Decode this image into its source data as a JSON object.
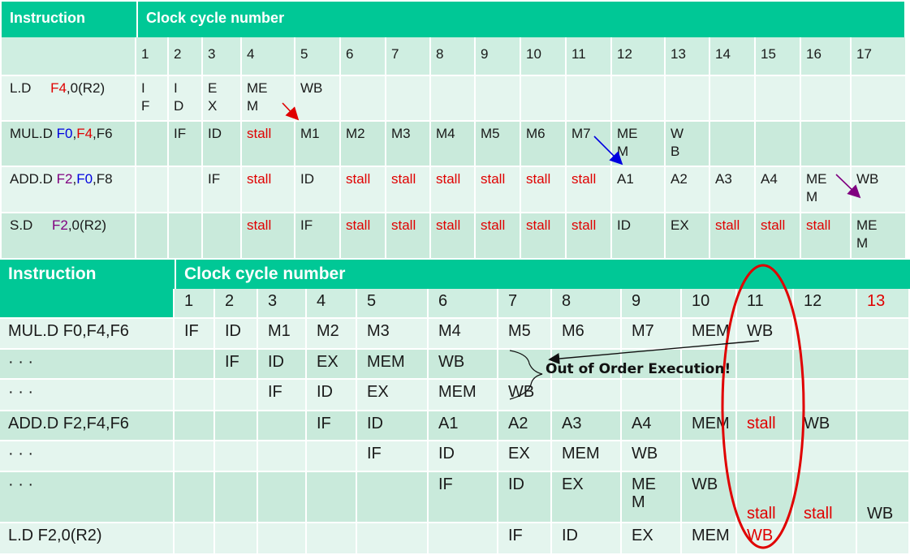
{
  "top_table": {
    "instruction_header": "Instruction",
    "clock_header": "Clock cycle number",
    "cycles": [
      "1",
      "2",
      "3",
      "4",
      "5",
      "6",
      "7",
      "8",
      "9",
      "10",
      "11",
      "12",
      "13",
      "14",
      "15",
      "16",
      "17"
    ],
    "rows": [
      {
        "parts": [
          {
            "t": "L.D     ",
            "c": ""
          },
          {
            "t": "F4",
            "c": "red"
          },
          {
            "t": ",0(R2)",
            "c": ""
          }
        ],
        "cells": [
          "I\nF",
          "I\nD",
          "E\nX",
          "ME\nM",
          "WB",
          "",
          "",
          "",
          "",
          "",
          "",
          "",
          "",
          "",
          "",
          "",
          ""
        ]
      },
      {
        "parts": [
          {
            "t": "MUL.D ",
            "c": ""
          },
          {
            "t": "F0",
            "c": "blue"
          },
          {
            "t": ",",
            "c": ""
          },
          {
            "t": "F4",
            "c": "red"
          },
          {
            "t": ",F6",
            "c": ""
          }
        ],
        "cells": [
          "",
          "IF",
          "ID",
          "stall",
          "M1",
          "M2",
          "M3",
          "M4",
          "M5",
          "M6",
          "M7",
          "ME\nM",
          "W\nB",
          "",
          "",
          "",
          ""
        ]
      },
      {
        "parts": [
          {
            "t": "ADD.D ",
            "c": ""
          },
          {
            "t": "F2",
            "c": "purple"
          },
          {
            "t": ",",
            "c": ""
          },
          {
            "t": "F0",
            "c": "blue"
          },
          {
            "t": ",F8",
            "c": ""
          }
        ],
        "cells": [
          "",
          "",
          "IF",
          "stall",
          "ID",
          "stall",
          "stall",
          "stall",
          "stall",
          "stall",
          "stall",
          "A1",
          "A2",
          "A3",
          "A4",
          "ME\nM",
          "WB"
        ]
      },
      {
        "parts": [
          {
            "t": "S.D     ",
            "c": ""
          },
          {
            "t": "F2",
            "c": "purple"
          },
          {
            "t": ",0(R2)",
            "c": ""
          }
        ],
        "cells": [
          "",
          "",
          "",
          "stall",
          "IF",
          "stall",
          "stall",
          "stall",
          "stall",
          "stall",
          "stall",
          "ID",
          "EX",
          "stall",
          "stall",
          "stall",
          "ME\nM"
        ]
      }
    ]
  },
  "bottom_table": {
    "instruction_header": "Instruction",
    "clock_header": "Clock cycle number",
    "cycles": [
      "1",
      "2",
      "3",
      "4",
      "5",
      "6",
      "7",
      "8",
      "9",
      "10",
      "11",
      "12",
      "13"
    ],
    "red_cycles": [
      "13"
    ],
    "rows": [
      {
        "label": "MUL.D F0,F4,F6",
        "cells": [
          "IF",
          "ID",
          "M1",
          "M2",
          "M3",
          "M4",
          "M5",
          "M6",
          "M7",
          "MEM",
          "WB",
          "",
          ""
        ]
      },
      {
        "label": "· · ·",
        "cells": [
          "",
          "IF",
          "ID",
          "EX",
          "MEM",
          "WB",
          "",
          "",
          "",
          "",
          "",
          "",
          ""
        ]
      },
      {
        "label": "· · ·",
        "cells": [
          "",
          "",
          "IF",
          "ID",
          "EX",
          "MEM",
          "WB",
          "",
          "",
          "",
          "",
          "",
          ""
        ]
      },
      {
        "label": "ADD.D F2,F4,F6",
        "cells": [
          "",
          "",
          "",
          "IF",
          "ID",
          "A1",
          "A2",
          "A3",
          "A4",
          "MEM",
          "stall",
          "WB",
          ""
        ]
      },
      {
        "label": "· · ·",
        "cells": [
          "",
          "",
          "",
          "",
          "IF",
          "ID",
          "EX",
          "MEM",
          "WB",
          "",
          "",
          "",
          ""
        ]
      },
      {
        "label": "· · ·",
        "cells": [
          "",
          "",
          "",
          "",
          "",
          "IF",
          "ID",
          "EX",
          "ME\nM",
          "WB",
          "stall",
          "stall",
          "WB"
        ]
      },
      {
        "label": "L.D   F2,0(R2)",
        "cells": [
          "",
          "",
          "",
          "",
          "",
          "",
          "IF",
          "ID",
          "EX",
          "MEM",
          "WB",
          "",
          ""
        ]
      }
    ]
  },
  "annotation": {
    "text": "Out of Order Execution!"
  },
  "colors": {
    "header": "#00c896",
    "row_dark": "#c9eadb",
    "row_light": "#e4f5ee",
    "stall": "#e00000",
    "circle": "#e00000"
  }
}
